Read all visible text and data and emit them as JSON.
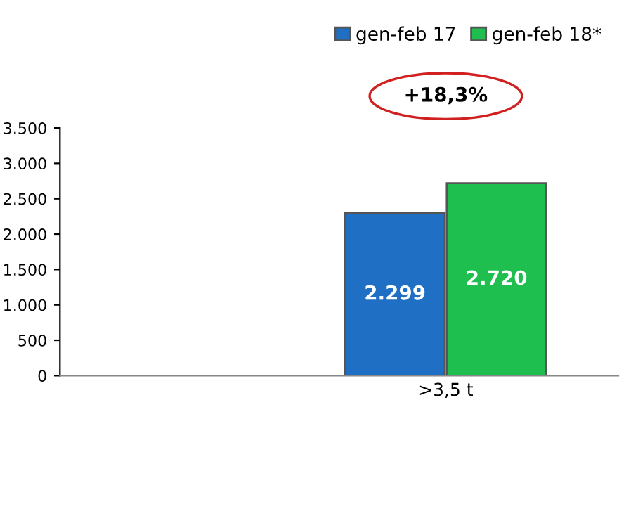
{
  "chart_data": {
    "type": "bar",
    "categories": [
      ">3,5 t"
    ],
    "series": [
      {
        "name": "gen-feb 17",
        "color": "#1f6fc4",
        "values": [
          2299
        ],
        "value_labels": [
          "2.299"
        ]
      },
      {
        "name": "gen-feb 18*",
        "color": "#1fbf4f",
        "values": [
          2720
        ],
        "value_labels": [
          "2.720"
        ]
      }
    ],
    "ylim": [
      0,
      3500
    ],
    "yticks": [
      {
        "value": 0,
        "label": "0"
      },
      {
        "value": 500,
        "label": "500"
      },
      {
        "value": 1000,
        "label": "1.000"
      },
      {
        "value": 1500,
        "label": "1.500"
      },
      {
        "value": 2000,
        "label": "2.000"
      },
      {
        "value": 2500,
        "label": "2.500"
      },
      {
        "value": 3000,
        "label": "3.000"
      },
      {
        "value": 3500,
        "label": "3.500"
      }
    ],
    "annotations": [
      "+18,3%"
    ],
    "legend": "top right",
    "grid": false
  }
}
